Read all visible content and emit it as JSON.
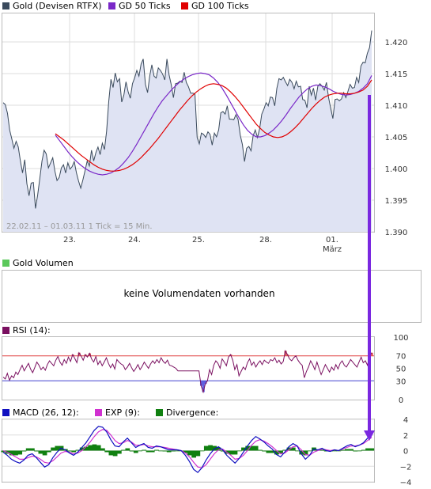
{
  "chart_data": [
    {
      "type": "line",
      "legend": [
        {
          "label": "Gold (Devisen RTFX)",
          "color": "#3a4a5c"
        },
        {
          "label": "GD 50 Ticks",
          "color": "#7a28c8"
        },
        {
          "label": "GD 100 Ticks",
          "color": "#e00000"
        }
      ],
      "x_labels": [
        "23.",
        "24.",
        "25.",
        "28.",
        "01.",
        "März"
      ],
      "y_ticks": [
        "1.420",
        "1.415",
        "1.410",
        "1.405",
        "1.400",
        "1.395",
        "1.390"
      ],
      "ylim": [
        1.39,
        1.4245
      ],
      "info_text": "22.02.11 – 01.03.11   1 Tick = 15 Min.",
      "series": [
        {
          "name": "Gold (Devisen RTFX)",
          "color": "#3a4a5c",
          "values": [
            1.4104,
            1.4101,
            1.4087,
            1.4061,
            1.4047,
            1.4032,
            1.4043,
            1.4034,
            1.4012,
            1.3993,
            1.4014,
            1.3976,
            1.3957,
            1.3977,
            1.3978,
            1.3937,
            1.3958,
            1.3984,
            1.4012,
            1.4029,
            1.4023,
            1.4001,
            1.4009,
            1.4017,
            1.3996,
            1.3981,
            1.3986,
            1.4001,
            1.4006,
            1.3993,
            1.4009,
            1.3999,
            1.4003,
            1.4011,
            1.3993,
            1.398,
            1.3969,
            1.3982,
            1.3997,
            1.4012,
            1.4004,
            1.4029,
            1.4012,
            1.4025,
            1.4034,
            1.4022,
            1.404,
            1.403,
            1.4059,
            1.4106,
            1.4141,
            1.4128,
            1.4151,
            1.4137,
            1.4142,
            1.4105,
            1.4116,
            1.4137,
            1.4121,
            1.4111,
            1.4134,
            1.4143,
            1.4155,
            1.4146,
            1.4165,
            1.4173,
            1.4133,
            1.412,
            1.4146,
            1.4164,
            1.4146,
            1.4143,
            1.4159,
            1.4155,
            1.4149,
            1.414,
            1.4173,
            1.4148,
            1.4132,
            1.4112,
            1.4134,
            1.4135,
            1.4138,
            1.4136,
            1.4152,
            1.4136,
            1.4129,
            1.4119,
            1.4119,
            1.4118,
            1.4049,
            1.4039,
            1.4056,
            1.4054,
            1.4049,
            1.4058,
            1.4054,
            1.4037,
            1.4056,
            1.405,
            1.4061,
            1.4088,
            1.409,
            1.4086,
            1.4099,
            1.4078,
            1.4078,
            1.4077,
            1.4085,
            1.4078,
            1.4053,
            1.4038,
            1.4011,
            1.4032,
            1.4035,
            1.4028,
            1.4052,
            1.4061,
            1.4049,
            1.4063,
            1.4086,
            1.4094,
            1.4104,
            1.4099,
            1.4113,
            1.4112,
            1.4099,
            1.4127,
            1.4142,
            1.414,
            1.4144,
            1.4137,
            1.4131,
            1.4141,
            1.4136,
            1.4126,
            1.4138,
            1.4129,
            1.413,
            1.4109,
            1.4108,
            1.4096,
            1.413,
            1.4116,
            1.4127,
            1.4108,
            1.413,
            1.4134,
            1.413,
            1.4124,
            1.4136,
            1.4112,
            1.4095,
            1.4079,
            1.4109,
            1.411,
            1.4107,
            1.411,
            1.412,
            1.4112,
            1.4122,
            1.4133,
            1.4127,
            1.4128,
            1.4144,
            1.4136,
            1.4162,
            1.4168,
            1.4167,
            1.4182,
            1.4191,
            1.4218
          ]
        },
        {
          "name": "GD 50 Ticks",
          "color": "#7a28c8",
          "values": [
            1.4053,
            1.4044,
            1.4035,
            1.4026,
            1.4018,
            1.4011,
            1.4005,
            1.4,
            1.3996,
            1.3993,
            1.3991,
            1.399,
            1.3991,
            1.3993,
            1.3997,
            1.4002,
            1.4009,
            1.4017,
            1.4027,
            1.4038,
            1.405,
            1.4062,
            1.4074,
            1.4086,
            1.4097,
            1.4107,
            1.4115,
            1.4123,
            1.413,
            1.4136,
            1.4141,
            1.4145,
            1.4148,
            1.415,
            1.4151,
            1.415,
            1.4148,
            1.4143,
            1.4136,
            1.4127,
            1.4116,
            1.4104,
            1.4092,
            1.408,
            1.4069,
            1.406,
            1.4054,
            1.405,
            1.405,
            1.4052,
            1.4056,
            1.4061,
            1.4068,
            1.4076,
            1.4085,
            1.4095,
            1.4104,
            1.4113,
            1.412,
            1.4126,
            1.413,
            1.4132,
            1.4131,
            1.4129,
            1.4126,
            1.4122,
            1.4119,
            1.4117,
            1.4116,
            1.4117,
            1.4119,
            1.4122,
            1.4127,
            1.4134,
            1.4147
          ]
        },
        {
          "name": "GD 100 Ticks",
          "color": "#e00000",
          "values": [
            1.4055,
            1.405,
            1.4045,
            1.4039,
            1.4033,
            1.4027,
            1.4021,
            1.4016,
            1.4011,
            1.4006,
            1.4002,
            1.3999,
            1.3997,
            1.3996,
            1.3996,
            1.3997,
            1.3999,
            1.4002,
            1.4006,
            1.4011,
            1.4017,
            1.4024,
            1.4031,
            1.4039,
            1.4047,
            1.4056,
            1.4065,
            1.4074,
            1.4083,
            1.4092,
            1.41,
            1.4108,
            1.4115,
            1.4121,
            1.4126,
            1.413,
            1.4133,
            1.4134,
            1.4133,
            1.4131,
            1.4127,
            1.4121,
            1.4114,
            1.4106,
            1.4097,
            1.4088,
            1.4079,
            1.407,
            1.4063,
            1.4057,
            1.4053,
            1.405,
            1.4049,
            1.405,
            1.4053,
            1.4058,
            1.4064,
            1.4071,
            1.4079,
            1.4087,
            1.4095,
            1.4102,
            1.4108,
            1.4113,
            1.4116,
            1.4118,
            1.4119,
            1.4119,
            1.4118,
            1.4118,
            1.4119,
            1.4121,
            1.4124,
            1.413,
            1.414
          ]
        }
      ]
    },
    {
      "type": "panel",
      "legend": [
        {
          "label": "Gold Volumen",
          "color": "#5bc85b"
        }
      ],
      "message": "keine Volumendaten vorhanden"
    },
    {
      "type": "line",
      "legend": [
        {
          "label": "RSI (14):",
          "color": "#7a1060"
        }
      ],
      "y_ticks": [
        "100",
        "70",
        "50",
        "30",
        "0"
      ],
      "ylim": [
        0,
        100
      ],
      "levels": [
        {
          "value": 70,
          "color": "#e04040"
        },
        {
          "value": 30,
          "color": "#4040d0"
        }
      ],
      "series": [
        {
          "name": "RSI (14):",
          "color": "#7a1060",
          "values": [
            36,
            33,
            42,
            31,
            38,
            35,
            44,
            40,
            48,
            55,
            46,
            52,
            58,
            49,
            43,
            51,
            60,
            55,
            48,
            52,
            47,
            56,
            62,
            58,
            54,
            63,
            69,
            60,
            55,
            64,
            58,
            68,
            61,
            72,
            66,
            59,
            75,
            70,
            63,
            72,
            68,
            74,
            65,
            60,
            69,
            56,
            62,
            54,
            60,
            67,
            58,
            51,
            57,
            49,
            64,
            60,
            57,
            55,
            48,
            52,
            58,
            51,
            45,
            50,
            56,
            48,
            53,
            60,
            55,
            50,
            57,
            62,
            58,
            64,
            59,
            67,
            61,
            58,
            63,
            55,
            54,
            52,
            50,
            46,
            46,
            46,
            46,
            46,
            46,
            46,
            46,
            46,
            46,
            46,
            22,
            12,
            25,
            30,
            48,
            40,
            55,
            62,
            58,
            50,
            65,
            60,
            54,
            68,
            72,
            63,
            48,
            56,
            38,
            45,
            52,
            48,
            59,
            65,
            55,
            60,
            52,
            58,
            62,
            56,
            63,
            60,
            58,
            64,
            62,
            67,
            59,
            63,
            57,
            61,
            78,
            72,
            65,
            62,
            67,
            70,
            63,
            58,
            55,
            35,
            45,
            52,
            62,
            56,
            48,
            60,
            50,
            40,
            48,
            56,
            50,
            44,
            52,
            47,
            56,
            49,
            58,
            62,
            55,
            52,
            58,
            64,
            60,
            56,
            52,
            60,
            68,
            59,
            62,
            55,
            70,
            75
          ]
        }
      ]
    },
    {
      "type": "line",
      "legend": [
        {
          "label": "MACD (26, 12):",
          "color": "#1010c0"
        },
        {
          "label": "EXP (9):",
          "color": "#d030d0"
        },
        {
          "label": "Divergence:",
          "color": "#108010"
        }
      ],
      "y_ticks": [
        "4",
        "2",
        "0",
        "−2",
        "−4"
      ],
      "ylim": [
        -4,
        4
      ],
      "series": [
        {
          "name": "MACD (26, 12):",
          "color": "#1010c0",
          "values": [
            -0.2,
            -0.6,
            -1.1,
            -1.4,
            -1.6,
            -1.2,
            -0.6,
            -0.4,
            -0.9,
            -1.5,
            -2.1,
            -1.8,
            -0.9,
            -0.2,
            0.3,
            0.1,
            -0.3,
            -0.6,
            -0.2,
            0.4,
            1.0,
            1.8,
            2.6,
            3.1,
            3.0,
            2.4,
            1.4,
            0.6,
            0.5,
            1.1,
            1.6,
            1.0,
            0.4,
            0.7,
            0.9,
            0.4,
            0.3,
            0.6,
            0.5,
            0.3,
            0.1,
            0.1,
            0.1,
            0.0,
            -0.6,
            -1.4,
            -2.4,
            -2.8,
            -2.2,
            -1.2,
            -0.4,
            0.2,
            0.5,
            0.1,
            -0.6,
            -1.1,
            -1.6,
            -1.0,
            -0.2,
            0.6,
            1.3,
            1.8,
            1.5,
            1.1,
            0.6,
            0.2,
            -0.5,
            -0.8,
            -0.2,
            0.5,
            0.9,
            0.6,
            -0.4,
            -1.1,
            -0.6,
            0.2,
            0.1,
            0.3,
            0.0,
            -0.1,
            0.1,
            0.0,
            0.3,
            0.6,
            0.8,
            0.5,
            0.7,
            1.0,
            1.6,
            2.0
          ]
        },
        {
          "name": "EXP (9):",
          "color": "#d030d0",
          "values": [
            0.0,
            -0.2,
            -0.5,
            -0.8,
            -1.1,
            -1.1,
            -0.9,
            -0.7,
            -0.8,
            -1.1,
            -1.5,
            -1.6,
            -1.3,
            -0.8,
            -0.3,
            -0.1,
            -0.2,
            -0.4,
            -0.3,
            0.0,
            0.5,
            1.1,
            1.8,
            2.4,
            2.7,
            2.6,
            2.0,
            1.3,
            0.9,
            1.0,
            1.3,
            1.1,
            0.7,
            0.7,
            0.8,
            0.6,
            0.5,
            0.5,
            0.5,
            0.4,
            0.3,
            0.2,
            0.1,
            0.0,
            -0.3,
            -0.8,
            -1.5,
            -2.1,
            -2.2,
            -1.8,
            -1.1,
            -0.4,
            0.1,
            0.2,
            -0.2,
            -0.6,
            -1.1,
            -1.0,
            -0.6,
            0.0,
            0.7,
            1.2,
            1.4,
            1.2,
            0.9,
            0.5,
            0.0,
            -0.4,
            -0.3,
            0.1,
            0.5,
            0.6,
            0.1,
            -0.5,
            -0.6,
            -0.2,
            0.0,
            0.2,
            0.1,
            0.0,
            0.1,
            0.0,
            0.2,
            0.4,
            0.6,
            0.6,
            0.7,
            0.9,
            1.3,
            1.7
          ]
        },
        {
          "name": "Divergence:",
          "color": "#108010",
          "values": [
            -0.2,
            -0.4,
            -0.6,
            -0.6,
            -0.5,
            -0.1,
            0.3,
            0.3,
            -0.1,
            -0.4,
            -0.6,
            -0.2,
            0.4,
            0.6,
            0.6,
            0.2,
            -0.1,
            -0.2,
            0.1,
            0.4,
            0.5,
            0.7,
            0.8,
            0.7,
            0.3,
            -0.2,
            -0.6,
            -0.7,
            -0.4,
            0.1,
            0.3,
            -0.1,
            -0.3,
            0.0,
            0.1,
            -0.2,
            -0.2,
            0.1,
            0.0,
            -0.1,
            -0.2,
            -0.1,
            0.0,
            0.0,
            -0.3,
            -0.6,
            -0.9,
            -0.7,
            0.0,
            0.6,
            0.7,
            0.6,
            0.4,
            -0.1,
            -0.4,
            -0.5,
            -0.5,
            0.0,
            0.4,
            0.6,
            0.6,
            0.6,
            0.1,
            -0.1,
            -0.3,
            -0.3,
            -0.5,
            -0.4,
            0.1,
            0.4,
            0.4,
            0.0,
            -0.5,
            -0.6,
            0.0,
            0.4,
            0.1,
            0.1,
            -0.1,
            -0.1,
            0.0,
            0.0,
            0.1,
            0.2,
            0.2,
            -0.1,
            0.0,
            0.1,
            0.3,
            0.3
          ]
        }
      ]
    }
  ],
  "colors": {
    "grid": "#dddddd",
    "frame": "#bbbbbb",
    "arrow": "#7a28e0",
    "price_fill": "#dfe3f3"
  }
}
